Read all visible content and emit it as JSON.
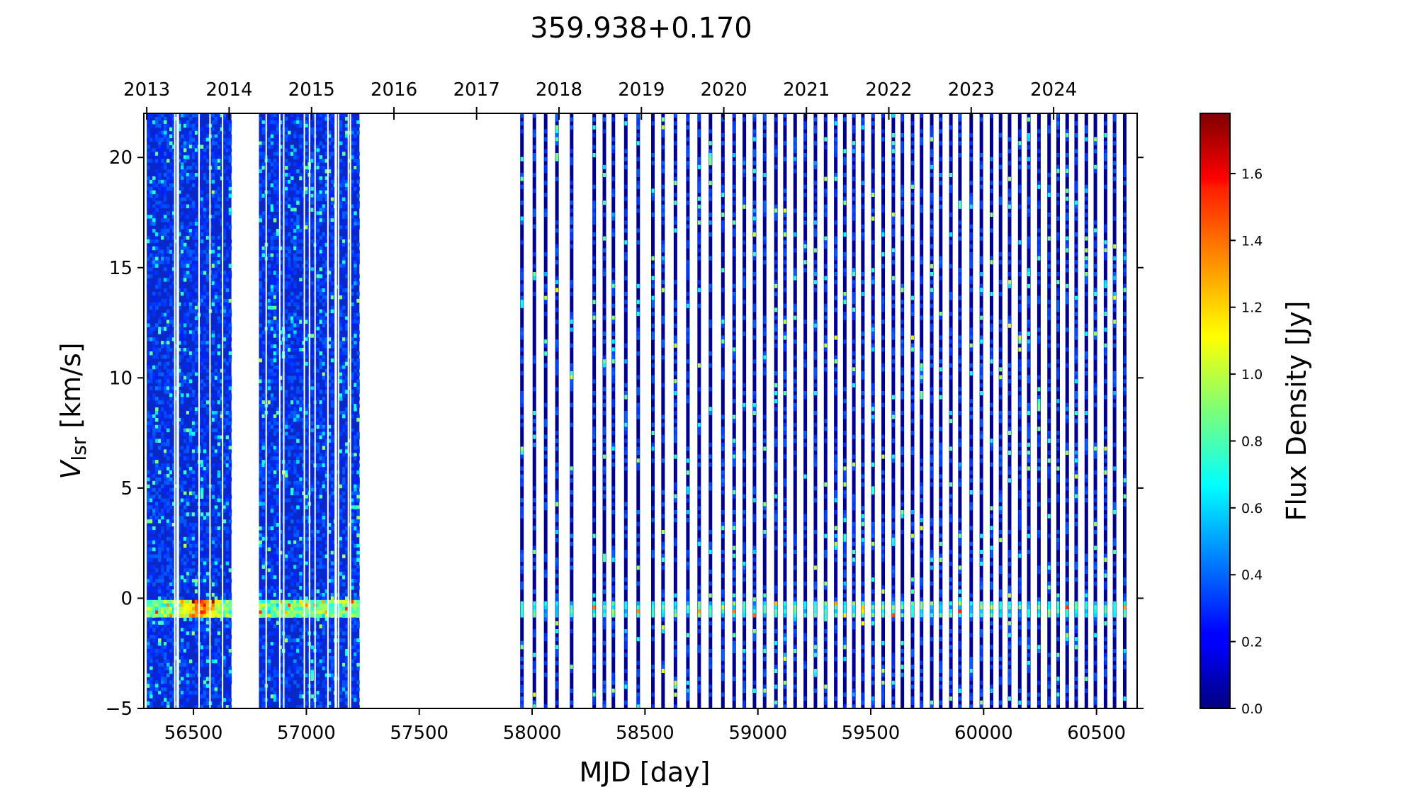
{
  "chart_data": {
    "type": "heatmap",
    "title": "359.938+0.170",
    "xlabel": "MJD [day]",
    "ylabel_main": "V",
    "ylabel_sub": "lsr",
    "ylabel_unit": " [km/s]",
    "xlim": [
      56280,
      60680
    ],
    "ylim": [
      -5,
      22
    ],
    "x_ticks": [
      "56500",
      "57000",
      "57500",
      "58000",
      "58500",
      "59000",
      "59500",
      "60000",
      "60500"
    ],
    "x_tick_values": [
      56500,
      57000,
      57500,
      58000,
      58500,
      59000,
      59500,
      60000,
      60500
    ],
    "y_ticks": [
      "−5",
      "0",
      "5",
      "10",
      "15",
      "20"
    ],
    "y_tick_values": [
      -5,
      0,
      5,
      10,
      15,
      20
    ],
    "top_axis_years": [
      "2013",
      "2014",
      "2015",
      "2016",
      "2017",
      "2018",
      "2019",
      "2020",
      "2021",
      "2022",
      "2023",
      "2024"
    ],
    "top_axis_year_mjd": [
      56293,
      56658,
      57023,
      57388,
      57754,
      58119,
      58484,
      58849,
      59215,
      59580,
      59945,
      60310
    ],
    "colorbar": {
      "label": "Flux Density [Jy]",
      "range": [
        0.0,
        1.78
      ],
      "ticks": [
        "0.0",
        "0.2",
        "0.4",
        "0.6",
        "0.8",
        "1.0",
        "1.2",
        "1.4",
        "1.6"
      ],
      "tick_values": [
        0.0,
        0.2,
        0.4,
        0.6,
        0.8,
        1.0,
        1.2,
        1.4,
        1.6
      ],
      "colormap": "jet"
    },
    "coverage_blocks_mjd": [
      [
        56293,
        56668
      ],
      [
        56790,
        57235
      ]
    ],
    "observation_epochs_mjd": [
      57955,
      58010,
      58060,
      58110,
      58175,
      58275,
      58320,
      58360,
      58415,
      58470,
      58535,
      58580,
      58635,
      58690,
      58740,
      58790,
      58845,
      58895,
      58940,
      58985,
      59030,
      59080,
      59120,
      59165,
      59210,
      59255,
      59300,
      59345,
      59385,
      59425,
      59465,
      59510,
      59555,
      59600,
      59640,
      59685,
      59725,
      59770,
      59810,
      59855,
      59895,
      59945,
      59990,
      60035,
      60075,
      60115,
      60160,
      60200,
      60245,
      60290,
      60330,
      60370,
      60410,
      60455,
      60495,
      60540,
      60580,
      60625
    ],
    "emission_feature": {
      "velocity_kms": -0.5,
      "peak_flux_jy": 1.5,
      "peak_mjd": 56530
    }
  }
}
